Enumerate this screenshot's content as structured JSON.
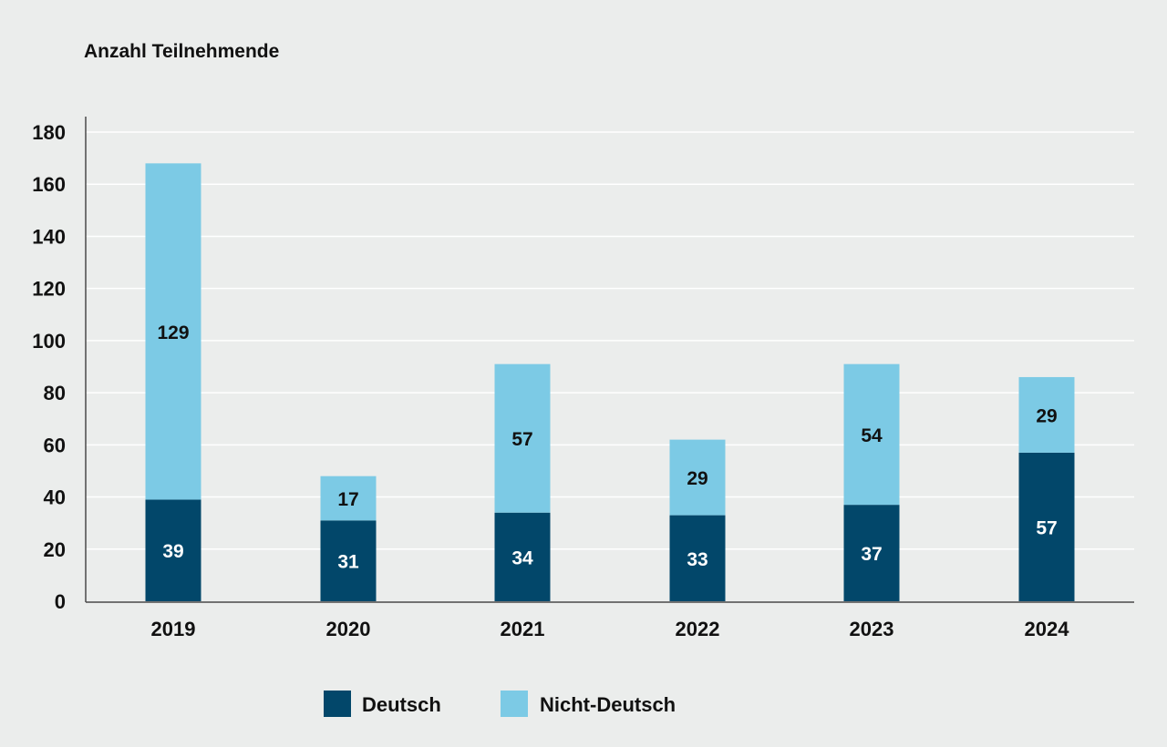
{
  "chart_data": {
    "type": "bar",
    "stacked": true,
    "ylabel": "Anzahl Teilnehmende",
    "categories": [
      "2019",
      "2020",
      "2021",
      "2022",
      "2023",
      "2024"
    ],
    "ylim": [
      0,
      180
    ],
    "yticks": [
      0,
      20,
      40,
      60,
      80,
      100,
      120,
      140,
      160,
      180
    ],
    "grid": true,
    "legend_position": "bottom-center",
    "series": [
      {
        "name": "Deutsch",
        "color": "#02476a",
        "label_color": "#ffffff",
        "values": [
          39,
          31,
          34,
          33,
          37,
          57
        ]
      },
      {
        "name": "Nicht-Deutsch",
        "color": "#7ccae5",
        "label_color": "#111111",
        "values": [
          129,
          17,
          57,
          29,
          54,
          29
        ]
      }
    ]
  }
}
